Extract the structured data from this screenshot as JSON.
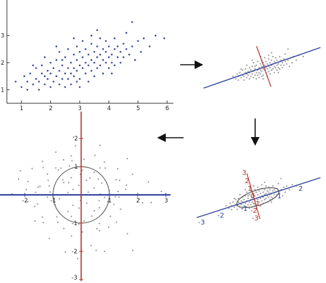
{
  "panel_a": {
    "x_ticks": [
      "1",
      "2",
      "3",
      "4",
      "5",
      "6"
    ],
    "y_ticks": [
      "1",
      "2",
      "3"
    ],
    "points": [
      [
        0.8,
        1.3
      ],
      [
        1.0,
        1.1
      ],
      [
        1.1,
        1.5
      ],
      [
        1.2,
        1.0
      ],
      [
        1.2,
        1.3
      ],
      [
        1.3,
        1.6
      ],
      [
        1.4,
        1.2
      ],
      [
        1.5,
        1.4
      ],
      [
        1.5,
        1.8
      ],
      [
        1.6,
        1.0
      ],
      [
        1.6,
        1.3
      ],
      [
        1.7,
        1.6
      ],
      [
        1.7,
        1.9
      ],
      [
        1.8,
        1.2
      ],
      [
        1.8,
        1.5
      ],
      [
        1.9,
        1.7
      ],
      [
        1.9,
        1.4
      ],
      [
        2.0,
        1.1
      ],
      [
        2.0,
        1.6
      ],
      [
        2.0,
        2.0
      ],
      [
        2.1,
        1.3
      ],
      [
        2.1,
        1.8
      ],
      [
        2.2,
        1.5
      ],
      [
        2.2,
        2.1
      ],
      [
        2.3,
        1.2
      ],
      [
        2.3,
        1.7
      ],
      [
        2.3,
        2.4
      ],
      [
        2.4,
        1.4
      ],
      [
        2.4,
        1.9
      ],
      [
        2.5,
        1.6
      ],
      [
        2.5,
        2.2
      ],
      [
        2.5,
        1.1
      ],
      [
        2.6,
        1.8
      ],
      [
        2.6,
        1.4
      ],
      [
        2.6,
        2.5
      ],
      [
        2.7,
        2.0
      ],
      [
        2.7,
        1.6
      ],
      [
        2.7,
        1.2
      ],
      [
        2.8,
        2.3
      ],
      [
        2.8,
        1.8
      ],
      [
        2.8,
        1.5
      ],
      [
        2.9,
        2.1
      ],
      [
        2.9,
        1.7
      ],
      [
        2.9,
        2.6
      ],
      [
        3.0,
        1.9
      ],
      [
        3.0,
        1.4
      ],
      [
        3.0,
        2.4
      ],
      [
        3.1,
        2.2
      ],
      [
        3.1,
        1.8
      ],
      [
        3.1,
        2.8
      ],
      [
        3.2,
        2.0
      ],
      [
        3.2,
        1.6
      ],
      [
        3.2,
        2.5
      ],
      [
        3.3,
        2.3
      ],
      [
        3.3,
        1.9
      ],
      [
        3.3,
        1.3
      ],
      [
        3.4,
        2.1
      ],
      [
        3.4,
        2.7
      ],
      [
        3.4,
        1.7
      ],
      [
        3.5,
        2.4
      ],
      [
        3.5,
        2.0
      ],
      [
        3.5,
        1.5
      ],
      [
        3.6,
        2.6
      ],
      [
        3.6,
        2.2
      ],
      [
        3.6,
        1.8
      ],
      [
        3.7,
        2.3
      ],
      [
        3.7,
        2.9
      ],
      [
        3.7,
        1.9
      ],
      [
        3.8,
        2.1
      ],
      [
        3.8,
        2.5
      ],
      [
        3.8,
        1.6
      ],
      [
        3.9,
        2.4
      ],
      [
        3.9,
        2.0
      ],
      [
        3.9,
        2.8
      ],
      [
        4.0,
        2.2
      ],
      [
        4.0,
        1.8
      ],
      [
        4.0,
        2.6
      ],
      [
        4.1,
        2.3
      ],
      [
        4.1,
        2.0
      ],
      [
        4.2,
        2.5
      ],
      [
        4.2,
        1.9
      ],
      [
        4.2,
        2.9
      ],
      [
        4.3,
        2.2
      ],
      [
        4.3,
        2.6
      ],
      [
        4.4,
        2.4
      ],
      [
        4.4,
        2.0
      ],
      [
        4.5,
        2.7
      ],
      [
        4.5,
        2.2
      ],
      [
        4.6,
        2.5
      ],
      [
        4.6,
        3.1
      ],
      [
        4.7,
        2.3
      ],
      [
        4.8,
        2.6
      ],
      [
        4.9,
        2.1
      ],
      [
        5.0,
        2.8
      ],
      [
        5.1,
        2.4
      ],
      [
        5.2,
        2.9
      ],
      [
        5.4,
        2.6
      ],
      [
        5.6,
        3.0
      ],
      [
        5.9,
        2.9
      ],
      [
        4.8,
        3.5
      ],
      [
        3.4,
        3.0
      ],
      [
        2.2,
        2.6
      ],
      [
        2.8,
        2.9
      ],
      [
        1.8,
        2.2
      ],
      [
        3.0,
        1.1
      ],
      [
        4.1,
        1.6
      ],
      [
        3.6,
        3.2
      ],
      [
        2.4,
        2.1
      ],
      [
        1.4,
        1.9
      ],
      [
        2.9,
        1.3
      ]
    ]
  },
  "panel_b": {},
  "panel_c": {
    "red_ticks": [
      "3",
      "2",
      "1",
      "0",
      "-1",
      "-2",
      "-3"
    ],
    "blue_ticks": [
      "-3",
      "-2",
      "-1",
      "1",
      "2"
    ]
  },
  "panel_d": {
    "x_ticks": [
      "-2",
      "-1",
      "1",
      "2",
      "3"
    ],
    "y_ticks": [
      "2",
      "1",
      "-1",
      "-2",
      "-3"
    ]
  },
  "colors": {
    "points_dark": "#3a4a9a",
    "points_gray": "#9a9a9a",
    "axis_blue": "#2b3f9e",
    "axis_red": "#b5322a",
    "ellipse": "#555555"
  },
  "arrows": [
    "arrow-right",
    "arrow-down",
    "arrow-left"
  ]
}
